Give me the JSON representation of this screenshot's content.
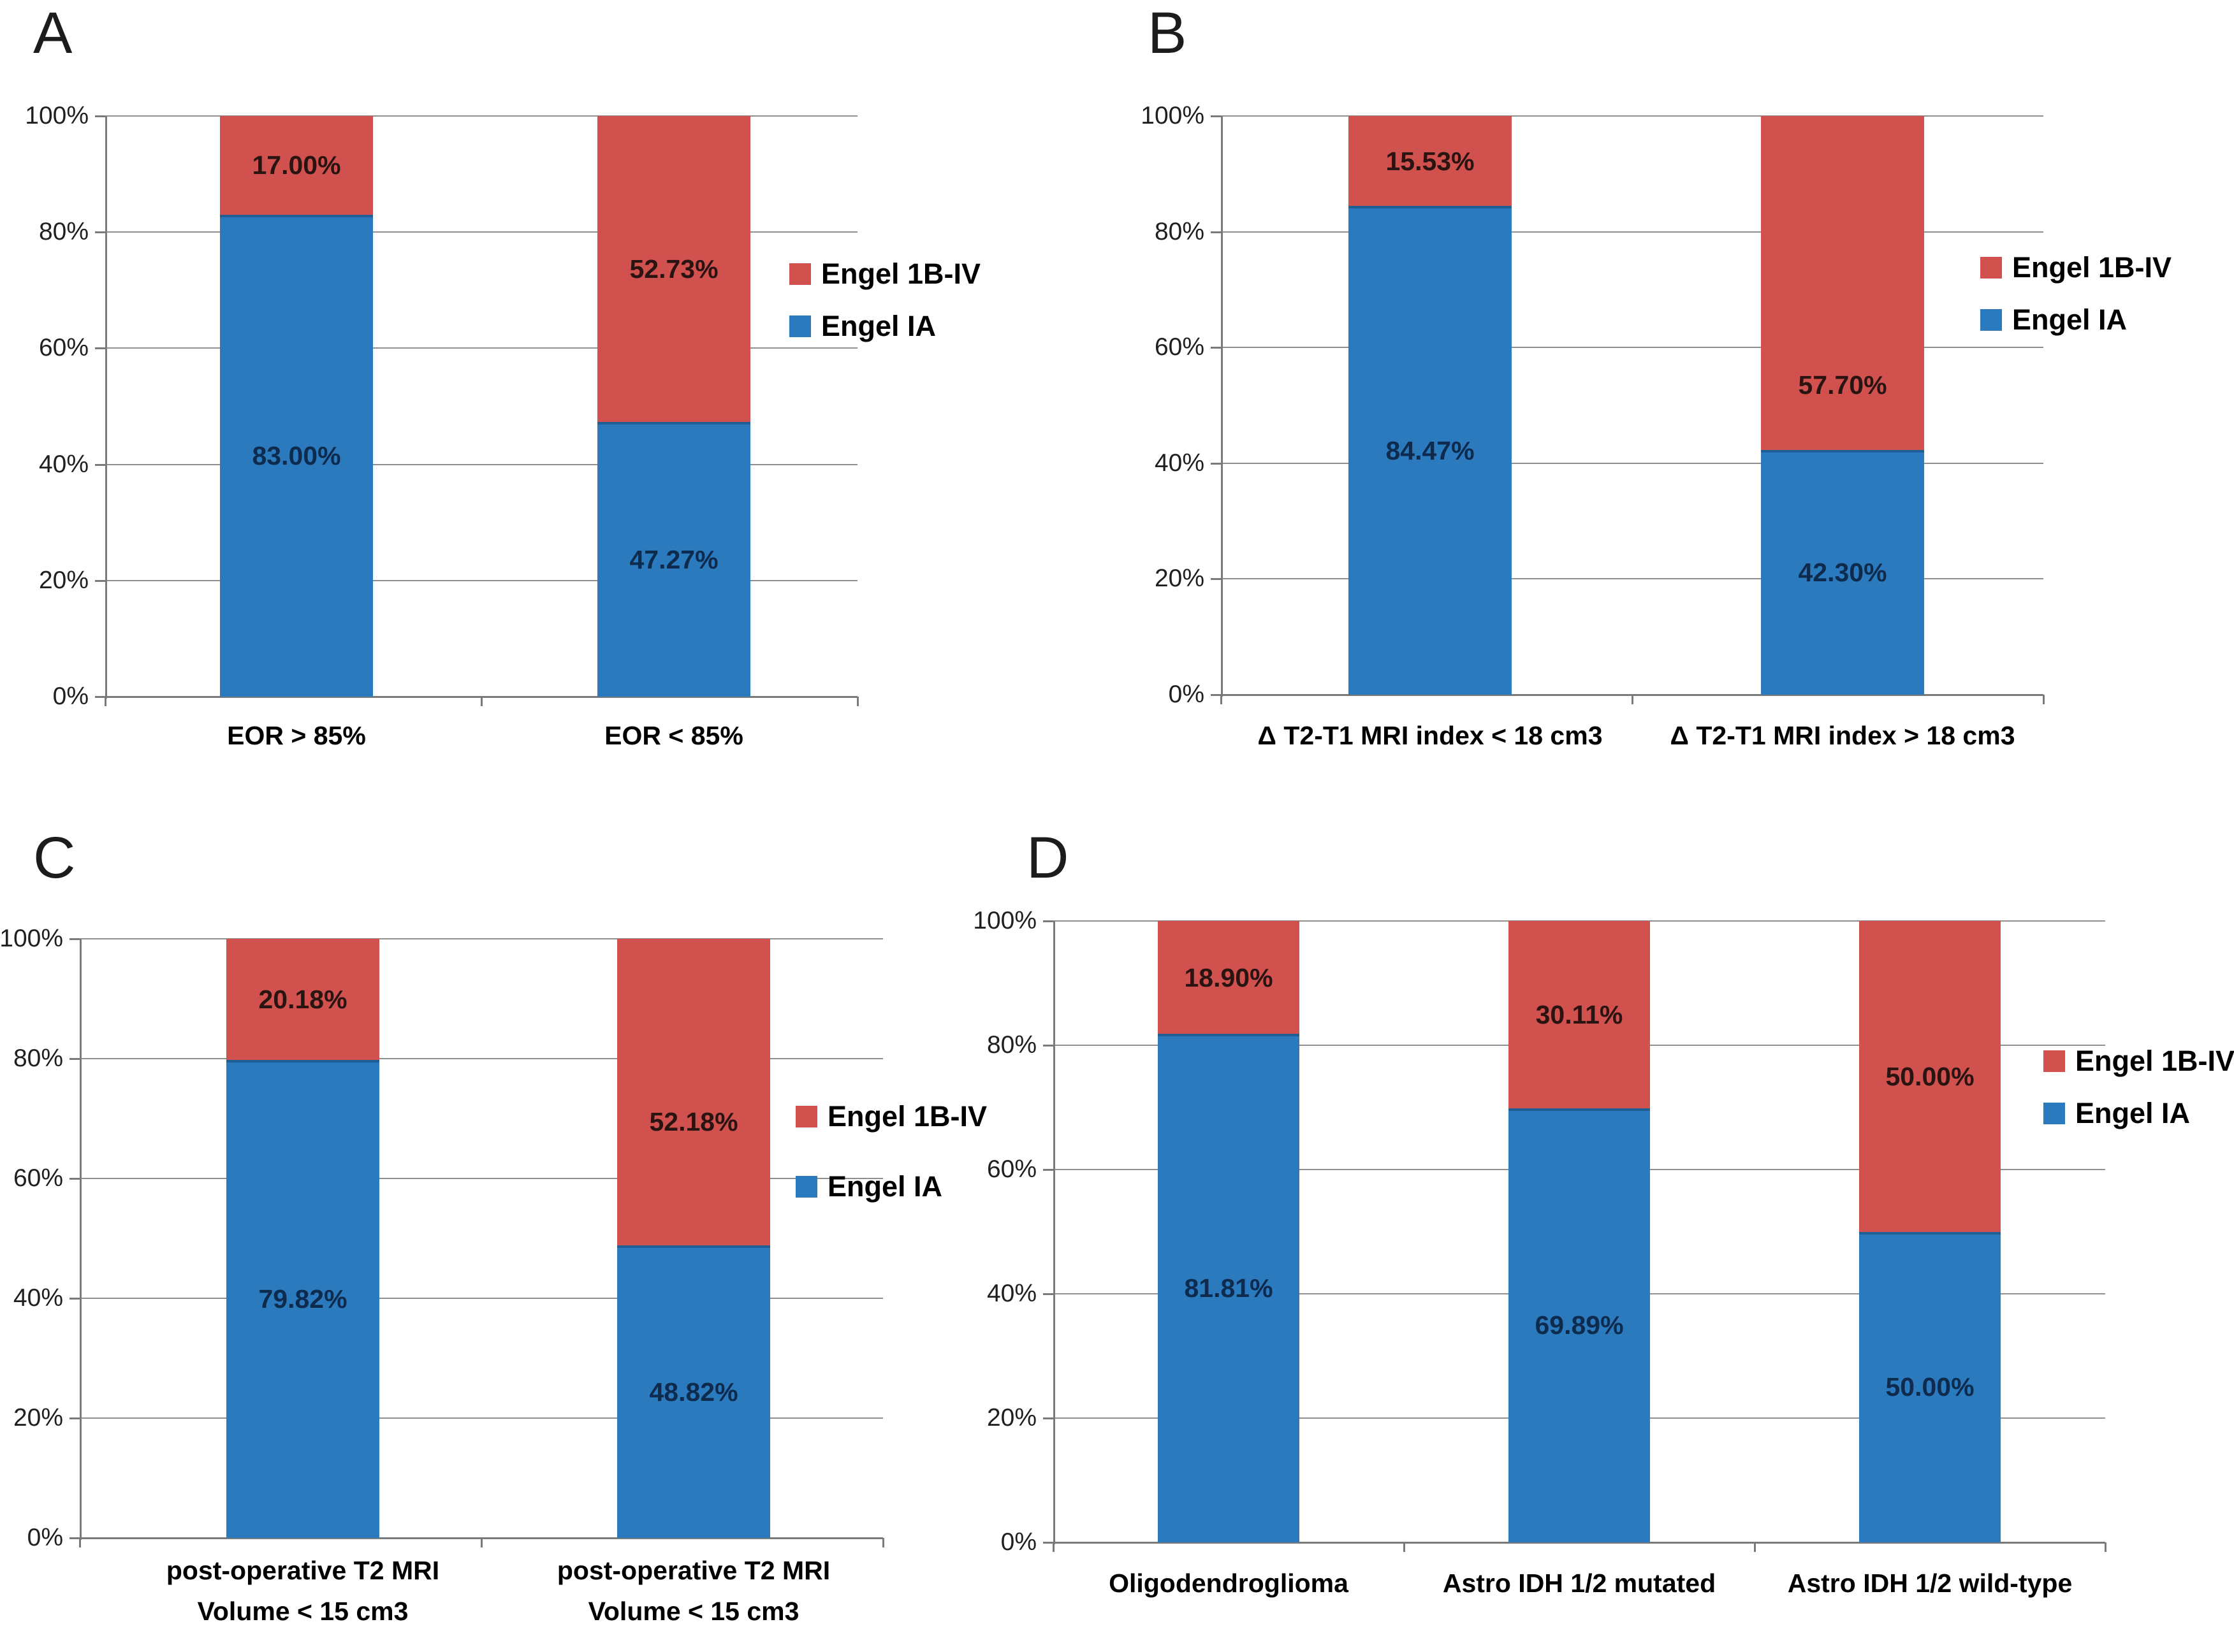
{
  "figure": {
    "background": "#ffffff",
    "panel_letters": [
      "A",
      "B",
      "C",
      "D"
    ]
  },
  "colors": {
    "engel_1b_iv_red": "#d0514e",
    "engel_ia_blue": "#2b7abe",
    "blue_top_edge": "#1f5f96",
    "gridline_gray": "#8f8f8f",
    "axis_gray": "#7a7a7a",
    "label_on_red": "#2a1412",
    "label_on_blue": "#0e2a4d",
    "text_black": "#000000"
  },
  "y_axis": {
    "ticks_bottom_to_top": [
      "0%",
      "20%",
      "40%",
      "60%",
      "80%",
      "100%"
    ]
  },
  "legend": {
    "items": [
      {
        "label": "Engel 1B-IV",
        "color": "#d0514e"
      },
      {
        "label": "Engel IA",
        "color": "#2b7abe"
      }
    ]
  },
  "chart_data": [
    {
      "type": "bar",
      "stacked": true,
      "panel": "A",
      "categories": [
        "EOR > 85%",
        "EOR < 85%"
      ],
      "categories_lines": [
        [
          "EOR > 85%"
        ],
        [
          "EOR < 85%"
        ]
      ],
      "series": [
        {
          "name": "Engel 1B-IV",
          "color": "#d0514e",
          "values": [
            17.0,
            52.73
          ]
        },
        {
          "name": "Engel IA",
          "color": "#2b7abe",
          "values": [
            83.0,
            47.27
          ]
        }
      ],
      "ylim": [
        0,
        100
      ],
      "yticks": [
        "0%",
        "20%",
        "40%",
        "60%",
        "80%",
        "100%"
      ],
      "grid": true,
      "legend_position": "right"
    },
    {
      "type": "bar",
      "stacked": true,
      "panel": "B",
      "categories": [
        "Δ T2-T1 MRI index < 18 cm3",
        "Δ T2-T1 MRI index > 18 cm3"
      ],
      "categories_lines": [
        [
          "Δ T2-T1 MRI index < 18 cm3"
        ],
        [
          "Δ T2-T1 MRI index > 18 cm3"
        ]
      ],
      "series": [
        {
          "name": "Engel 1B-IV",
          "color": "#d0514e",
          "values": [
            15.53,
            57.7
          ]
        },
        {
          "name": "Engel IA",
          "color": "#2b7abe",
          "values": [
            84.47,
            42.3
          ]
        }
      ],
      "ylim": [
        0,
        100
      ],
      "yticks": [
        "0%",
        "20%",
        "40%",
        "60%",
        "80%",
        "100%"
      ],
      "grid": true,
      "legend_position": "right"
    },
    {
      "type": "bar",
      "stacked": true,
      "panel": "C",
      "categories": [
        "post-operative T2 MRI Volume < 15 cm3",
        "post-operative T2 MRI Volume < 15 cm3"
      ],
      "categories_lines": [
        [
          "post-operative T2 MRI",
          "Volume < 15 cm3"
        ],
        [
          "post-operative T2 MRI",
          "Volume < 15 cm3"
        ]
      ],
      "series": [
        {
          "name": "Engel 1B-IV",
          "color": "#d0514e",
          "values": [
            20.18,
            52.18
          ]
        },
        {
          "name": "Engel IA",
          "color": "#2b7abe",
          "values": [
            79.82,
            48.82
          ]
        }
      ],
      "ylim": [
        0,
        100
      ],
      "yticks": [
        "0%",
        "20%",
        "40%",
        "60%",
        "80%",
        "100%"
      ],
      "grid": true,
      "legend_position": "right"
    },
    {
      "type": "bar",
      "stacked": true,
      "panel": "D",
      "categories": [
        "Oligodendroglioma",
        "Astro IDH 1/2 mutated",
        "Astro IDH 1/2 wild-type"
      ],
      "categories_lines": [
        [
          "Oligodendroglioma"
        ],
        [
          "Astro IDH 1/2 mutated"
        ],
        [
          "Astro IDH 1/2 wild-type"
        ]
      ],
      "series": [
        {
          "name": "Engel 1B-IV",
          "color": "#d0514e",
          "values": [
            18.9,
            30.11,
            50.0
          ]
        },
        {
          "name": "Engel IA",
          "color": "#2b7abe",
          "values": [
            81.81,
            69.89,
            50.0
          ]
        }
      ],
      "ylim": [
        0,
        100
      ],
      "yticks": [
        "0%",
        "20%",
        "40%",
        "60%",
        "80%",
        "100%"
      ],
      "grid": true,
      "legend_position": "right"
    }
  ]
}
